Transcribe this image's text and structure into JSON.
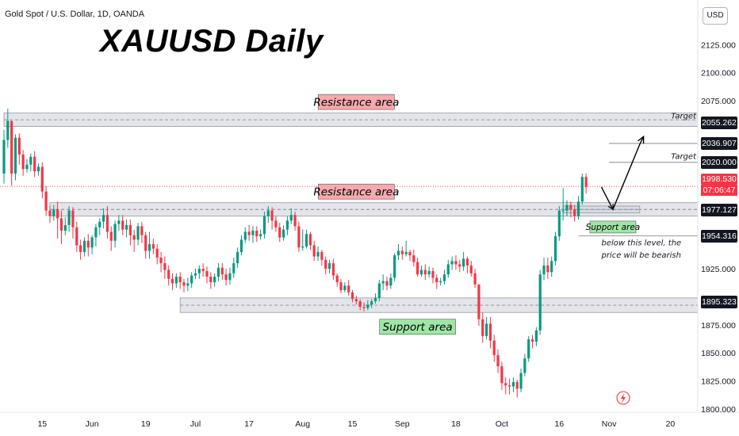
{
  "header": {
    "symbol_info": "Gold Spot / U.S. Dollar, 1D, OANDA",
    "title": "XAUUSD Daily",
    "currency": "USD"
  },
  "colors": {
    "up": "#089981",
    "down": "#f23645",
    "zone_fill": "#d1d4dc",
    "resistance_label": "#f7a9ad",
    "support_label": "#9ee6a6"
  },
  "chart_data": {
    "type": "candlestick",
    "title": "XAUUSD Daily",
    "y_axis": {
      "ticks": [
        2125,
        2100,
        2075,
        1925,
        1875,
        1850,
        1825,
        1800
      ],
      "ylim": [
        1797,
        2155
      ],
      "tick_labels": [
        "2125.000",
        "2100.000",
        "2075.000",
        "1925.000",
        "1875.000",
        "1850.000",
        "1825.000",
        "1800.000"
      ]
    },
    "x_axis": {
      "tick_labels": [
        "15",
        "Jun",
        "19",
        "Jul",
        "17",
        "Aug",
        "15",
        "Sep",
        "18",
        "Oct",
        "16",
        "Nov",
        "20"
      ],
      "tick_positions": [
        10,
        23,
        37,
        50,
        64,
        78,
        91,
        104,
        118,
        130,
        145,
        158,
        174
      ]
    },
    "price_labels": [
      {
        "value": "2055.262",
        "price": 2055.262
      },
      {
        "value": "2036.907",
        "price": 2036.907
      },
      {
        "value": "2020.000",
        "price": 2020.0
      },
      {
        "value": "1977.127",
        "price": 1977.127
      },
      {
        "value": "1954.316",
        "price": 1954.316
      },
      {
        "value": "1895.323",
        "price": 1895.323
      }
    ],
    "current_price": {
      "value": "1998.530",
      "timer": "07:06:47",
      "price": 1998.53
    },
    "zones": [
      {
        "label": "Resistance area",
        "low": 2052,
        "high": 2064,
        "x_start": 0,
        "x_end": 186
      },
      {
        "label": "Resistance area",
        "low": 1972,
        "high": 1984,
        "x_start": 12,
        "x_end": 186
      },
      {
        "label": "Support area",
        "low": 1886,
        "high": 1899,
        "x_start": 46,
        "x_end": 186
      },
      {
        "label": "Support area",
        "low": 1975,
        "high": 1981,
        "x_start": 146,
        "x_end": 166
      }
    ],
    "annotations": [
      {
        "text": "Target",
        "price": 2059,
        "bar": 169
      },
      {
        "text": "Target",
        "price": 2023,
        "bar": 169
      },
      {
        "text": "Support area",
        "price": 1962,
        "bar": 159
      },
      {
        "text": "below this level, the",
        "price": 1946,
        "bar": 156
      },
      {
        "text": "price will be bearish",
        "price": 1935,
        "bar": 156
      }
    ],
    "projection": [
      [
        156,
        1998
      ],
      [
        159,
        1978
      ],
      [
        166,
        2036
      ],
      [
        167,
        2043
      ]
    ],
    "levels": [
      {
        "price": 2036.907,
        "x_start": 158
      },
      {
        "price": 2020.0,
        "x_start": 158
      },
      {
        "price": 1954.316,
        "x_start": 150
      }
    ],
    "candles": [
      [
        2010,
        2040,
        2049,
        2001
      ],
      [
        2040,
        2057,
        2068,
        2033
      ],
      [
        2057,
        2010,
        2057,
        1999
      ],
      [
        2010,
        2042,
        2045,
        2004
      ],
      [
        2042,
        2027,
        2046,
        2018
      ],
      [
        2027,
        2014,
        2031,
        2008
      ],
      [
        2014,
        2018,
        2023,
        2011
      ],
      [
        2018,
        2025,
        2028,
        2012
      ],
      [
        2025,
        2012,
        2030,
        2007
      ],
      [
        2012,
        2016,
        2019,
        2008
      ],
      [
        2016,
        1994,
        2020,
        1988
      ],
      [
        1994,
        1977,
        1999,
        1972
      ],
      [
        1977,
        1972,
        1981,
        1966
      ],
      [
        1972,
        1978,
        1982,
        1968
      ],
      [
        1978,
        1970,
        1985,
        1952
      ],
      [
        1970,
        1959,
        1977,
        1947
      ],
      [
        1959,
        1964,
        1971,
        1955
      ],
      [
        1964,
        1977,
        1981,
        1958
      ],
      [
        1977,
        1962,
        1980,
        1952
      ],
      [
        1962,
        1946,
        1967,
        1940
      ],
      [
        1946,
        1940,
        1951,
        1933
      ],
      [
        1940,
        1950,
        1953,
        1936
      ],
      [
        1950,
        1944,
        1956,
        1936
      ],
      [
        1944,
        1953,
        1955,
        1938
      ],
      [
        1953,
        1962,
        1965,
        1945
      ],
      [
        1962,
        1967,
        1970,
        1955
      ],
      [
        1967,
        1973,
        1979,
        1961
      ],
      [
        1973,
        1958,
        1981,
        1952
      ],
      [
        1958,
        1950,
        1963,
        1941
      ],
      [
        1950,
        1965,
        1968,
        1944
      ],
      [
        1965,
        1968,
        1973,
        1959
      ],
      [
        1968,
        1960,
        1973,
        1955
      ],
      [
        1960,
        1964,
        1969,
        1953
      ],
      [
        1964,
        1955,
        1969,
        1946
      ],
      [
        1955,
        1951,
        1960,
        1940
      ],
      [
        1951,
        1963,
        1966,
        1946
      ],
      [
        1963,
        1955,
        1967,
        1948
      ],
      [
        1955,
        1941,
        1958,
        1934
      ],
      [
        1941,
        1947,
        1958,
        1934
      ],
      [
        1947,
        1943,
        1952,
        1938
      ],
      [
        1943,
        1935,
        1947,
        1929
      ],
      [
        1935,
        1930,
        1940,
        1922
      ],
      [
        1930,
        1924,
        1936,
        1916
      ],
      [
        1924,
        1916,
        1928,
        1910
      ],
      [
        1916,
        1912,
        1921,
        1906
      ],
      [
        1912,
        1918,
        1921,
        1908
      ],
      [
        1918,
        1913,
        1922,
        1907
      ],
      [
        1913,
        1910,
        1916,
        1904
      ],
      [
        1910,
        1912,
        1917,
        1905
      ],
      [
        1912,
        1919,
        1922,
        1908
      ],
      [
        1919,
        1921,
        1925,
        1916
      ],
      [
        1921,
        1925,
        1928,
        1916
      ],
      [
        1925,
        1923,
        1930,
        1918
      ],
      [
        1923,
        1918,
        1927,
        1912
      ],
      [
        1918,
        1913,
        1922,
        1907
      ],
      [
        1913,
        1918,
        1921,
        1909
      ],
      [
        1918,
        1926,
        1930,
        1914
      ],
      [
        1926,
        1920,
        1930,
        1915
      ],
      [
        1920,
        1915,
        1925,
        1910
      ],
      [
        1915,
        1921,
        1926,
        1911
      ],
      [
        1921,
        1930,
        1935,
        1917
      ],
      [
        1930,
        1940,
        1944,
        1926
      ],
      [
        1940,
        1951,
        1955,
        1937
      ],
      [
        1951,
        1958,
        1962,
        1948
      ],
      [
        1958,
        1955,
        1964,
        1950
      ],
      [
        1955,
        1959,
        1963,
        1948
      ],
      [
        1959,
        1954,
        1963,
        1949
      ],
      [
        1954,
        1956,
        1960,
        1951
      ],
      [
        1956,
        1972,
        1976,
        1952
      ],
      [
        1972,
        1977,
        1981,
        1966
      ],
      [
        1977,
        1968,
        1980,
        1960
      ],
      [
        1968,
        1962,
        1972,
        1958
      ],
      [
        1962,
        1953,
        1966,
        1949
      ],
      [
        1953,
        1960,
        1964,
        1950
      ],
      [
        1960,
        1968,
        1972,
        1955
      ],
      [
        1968,
        1973,
        1979,
        1965
      ],
      [
        1973,
        1963,
        1976,
        1959
      ],
      [
        1963,
        1944,
        1967,
        1940
      ],
      [
        1944,
        1945,
        1960,
        1941
      ],
      [
        1945,
        1956,
        1960,
        1943
      ],
      [
        1956,
        1946,
        1958,
        1942
      ],
      [
        1946,
        1936,
        1950,
        1932
      ],
      [
        1936,
        1940,
        1945,
        1932
      ],
      [
        1940,
        1933,
        1942,
        1928
      ],
      [
        1933,
        1925,
        1936,
        1920
      ],
      [
        1925,
        1930,
        1933,
        1921
      ],
      [
        1930,
        1919,
        1934,
        1915
      ],
      [
        1919,
        1913,
        1921,
        1909
      ],
      [
        1913,
        1906,
        1916,
        1903
      ],
      [
        1906,
        1910,
        1913,
        1904
      ],
      [
        1910,
        1904,
        1915,
        1901
      ],
      [
        1904,
        1898,
        1906,
        1895
      ],
      [
        1898,
        1896,
        1901,
        1893
      ],
      [
        1896,
        1891,
        1898,
        1888
      ],
      [
        1891,
        1890,
        1895,
        1887
      ],
      [
        1890,
        1893,
        1897,
        1888
      ],
      [
        1893,
        1896,
        1898,
        1890
      ],
      [
        1896,
        1899,
        1903,
        1894
      ],
      [
        1899,
        1912,
        1915,
        1896
      ],
      [
        1912,
        1914,
        1920,
        1906
      ],
      [
        1914,
        1910,
        1918,
        1906
      ],
      [
        1910,
        1917,
        1921,
        1907
      ],
      [
        1917,
        1937,
        1939,
        1914
      ],
      [
        1937,
        1941,
        1947,
        1933
      ],
      [
        1941,
        1938,
        1945,
        1933
      ],
      [
        1938,
        1940,
        1950,
        1936
      ],
      [
        1940,
        1937,
        1942,
        1932
      ],
      [
        1937,
        1931,
        1942,
        1927
      ],
      [
        1931,
        1920,
        1935,
        1918
      ],
      [
        1920,
        1924,
        1928,
        1918
      ],
      [
        1924,
        1920,
        1929,
        1915
      ],
      [
        1920,
        1923,
        1927,
        1917
      ],
      [
        1923,
        1917,
        1926,
        1912
      ],
      [
        1917,
        1913,
        1920,
        1907
      ],
      [
        1913,
        1914,
        1917,
        1910
      ],
      [
        1914,
        1920,
        1924,
        1911
      ],
      [
        1920,
        1929,
        1933,
        1917
      ],
      [
        1929,
        1932,
        1936,
        1924
      ],
      [
        1932,
        1929,
        1937,
        1924
      ],
      [
        1929,
        1927,
        1933,
        1922
      ],
      [
        1927,
        1934,
        1940,
        1923
      ],
      [
        1934,
        1928,
        1936,
        1921
      ],
      [
        1928,
        1921,
        1932,
        1918
      ],
      [
        1921,
        1911,
        1925,
        1908
      ],
      [
        1911,
        1880,
        1911,
        1874
      ],
      [
        1880,
        1865,
        1886,
        1859
      ],
      [
        1865,
        1876,
        1882,
        1862
      ],
      [
        1876,
        1861,
        1882,
        1854
      ],
      [
        1861,
        1848,
        1866,
        1842
      ],
      [
        1848,
        1838,
        1853,
        1832
      ],
      [
        1838,
        1823,
        1842,
        1817
      ],
      [
        1823,
        1821,
        1828,
        1813
      ],
      [
        1821,
        1820,
        1827,
        1813
      ],
      [
        1820,
        1824,
        1828,
        1815
      ],
      [
        1824,
        1818,
        1826,
        1810
      ],
      [
        1818,
        1832,
        1836,
        1815
      ],
      [
        1832,
        1845,
        1849,
        1829
      ],
      [
        1845,
        1862,
        1865,
        1842
      ],
      [
        1862,
        1860,
        1866,
        1854
      ],
      [
        1860,
        1870,
        1873,
        1856
      ],
      [
        1870,
        1920,
        1924,
        1866
      ],
      [
        1920,
        1928,
        1935,
        1915
      ],
      [
        1928,
        1922,
        1935,
        1916
      ],
      [
        1922,
        1932,
        1936,
        1918
      ],
      [
        1932,
        1954,
        1958,
        1928
      ],
      [
        1954,
        1977,
        1981,
        1950
      ],
      [
        1977,
        1977,
        1997,
        1968
      ],
      [
        1977,
        1982,
        1986,
        1972
      ],
      [
        1982,
        1978,
        1985,
        1971
      ],
      [
        1978,
        1972,
        1982,
        1967
      ],
      [
        1972,
        1985,
        1990,
        1969
      ],
      [
        1985,
        2007,
        2010,
        1982
      ],
      [
        2007,
        1998,
        2010,
        1992
      ]
    ]
  }
}
